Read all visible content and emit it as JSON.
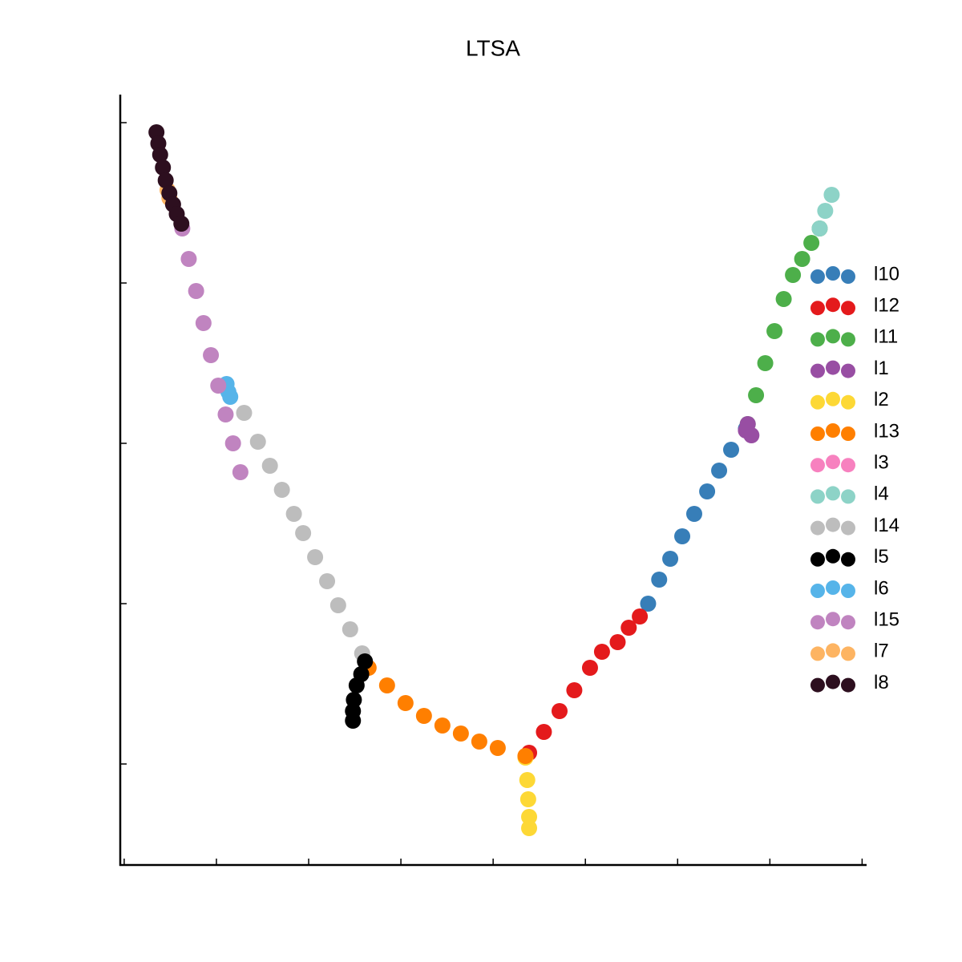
{
  "chart_data": {
    "type": "scatter",
    "title": "LTSA",
    "xlim": [
      -0.06,
      8.04
    ],
    "ylim": [
      -0.625,
      4.165
    ],
    "xticks": [
      0,
      1,
      2,
      3,
      4,
      5,
      6,
      7,
      8
    ],
    "yticks": [
      0,
      1,
      2,
      3,
      4
    ],
    "legend": "right",
    "series": [
      {
        "name": "l10",
        "color": "#377eb8",
        "x": [
          5.68,
          5.8,
          5.92,
          6.05,
          6.18,
          6.32,
          6.45,
          6.58,
          6.74
        ],
        "y": [
          1.0,
          1.15,
          1.28,
          1.42,
          1.56,
          1.7,
          1.83,
          1.96,
          2.09
        ]
      },
      {
        "name": "l12",
        "color": "#e41a1c",
        "x": [
          4.39,
          4.55,
          4.72,
          4.88,
          5.05,
          5.18,
          5.35,
          5.47,
          5.59
        ],
        "y": [
          0.07,
          0.2,
          0.33,
          0.46,
          0.6,
          0.7,
          0.76,
          0.85,
          0.92
        ]
      },
      {
        "name": "l11",
        "color": "#4daf4a",
        "x": [
          6.76,
          6.85,
          6.95,
          7.05,
          7.15,
          7.25,
          7.35,
          7.45,
          7.54
        ],
        "y": [
          2.12,
          2.3,
          2.5,
          2.7,
          2.9,
          3.05,
          3.15,
          3.25,
          3.34
        ]
      },
      {
        "name": "l1",
        "color": "#984ea3",
        "x": [
          6.74,
          6.8,
          6.76
        ],
        "y": [
          2.08,
          2.05,
          2.12
        ]
      },
      {
        "name": "l2",
        "color": "#fdd835",
        "x": [
          4.35,
          4.37,
          4.38,
          4.39,
          4.39
        ],
        "y": [
          0.04,
          -0.1,
          -0.22,
          -0.33,
          -0.4
        ]
      },
      {
        "name": "l13",
        "color": "#ff7f00",
        "x": [
          2.65,
          2.85,
          3.05,
          3.25,
          3.45,
          3.65,
          3.85,
          4.05,
          4.35
        ],
        "y": [
          0.6,
          0.49,
          0.38,
          0.3,
          0.24,
          0.19,
          0.14,
          0.1,
          0.05
        ]
      },
      {
        "name": "l3",
        "color": "#f781bf",
        "x": [],
        "y": []
      },
      {
        "name": "l4",
        "color": "#8dd3c7",
        "x": [
          7.54,
          7.6,
          7.67
        ],
        "y": [
          3.34,
          3.45,
          3.55
        ]
      },
      {
        "name": "l14",
        "color": "#bdbdbd",
        "x": [
          1.3,
          1.45,
          1.58,
          1.71,
          1.84,
          1.94,
          2.07,
          2.2,
          2.32,
          2.45,
          2.58
        ],
        "y": [
          2.19,
          2.01,
          1.86,
          1.71,
          1.56,
          1.44,
          1.29,
          1.14,
          0.99,
          0.84,
          0.69
        ]
      },
      {
        "name": "l5",
        "color": "#000000",
        "x": [
          2.61,
          2.57,
          2.52,
          2.49,
          2.48,
          2.48
        ],
        "y": [
          0.64,
          0.56,
          0.49,
          0.4,
          0.33,
          0.27
        ]
      },
      {
        "name": "l6",
        "color": "#56b4e9",
        "x": [
          1.11,
          1.13,
          1.15
        ],
        "y": [
          2.37,
          2.32,
          2.29
        ]
      },
      {
        "name": "l15",
        "color": "#c084c0",
        "x": [
          0.63,
          0.7,
          0.78,
          0.86,
          0.94,
          1.02,
          1.1,
          1.18,
          1.26
        ],
        "y": [
          3.34,
          3.15,
          2.95,
          2.75,
          2.55,
          2.36,
          2.18,
          2.0,
          1.82
        ]
      },
      {
        "name": "l7",
        "color": "#fdb462",
        "x": [
          0.47,
          0.49
        ],
        "y": [
          3.58,
          3.53
        ]
      },
      {
        "name": "l8",
        "color": "#2d0f1f",
        "x": [
          0.35,
          0.37,
          0.39,
          0.42,
          0.45,
          0.49,
          0.53,
          0.57,
          0.62
        ],
        "y": [
          3.94,
          3.87,
          3.8,
          3.72,
          3.64,
          3.56,
          3.49,
          3.43,
          3.37
        ]
      }
    ]
  }
}
